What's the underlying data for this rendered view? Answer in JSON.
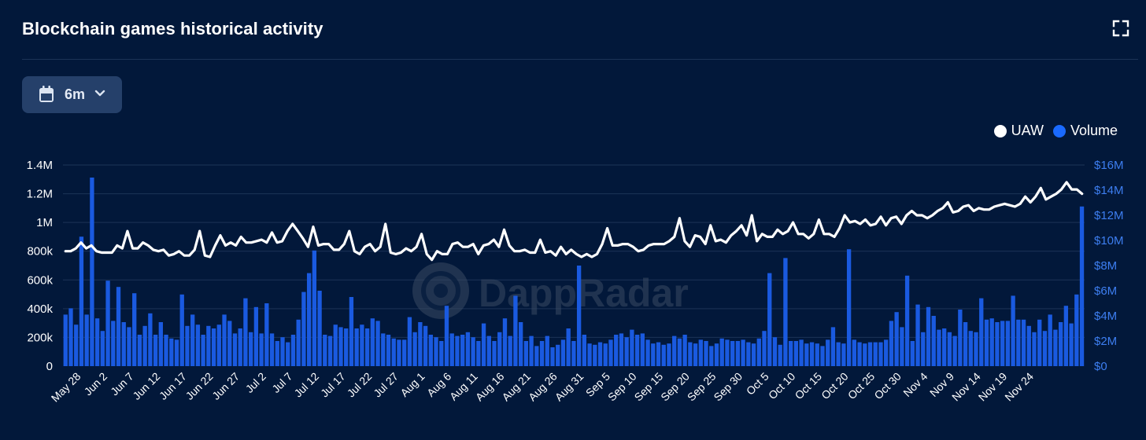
{
  "title": "Blockchain games historical activity",
  "period": {
    "label": "6m",
    "icon": "calendar-icon"
  },
  "watermark": "DappRadar",
  "legend": [
    {
      "name": "UAW",
      "color": "#ffffff"
    },
    {
      "name": "Volume",
      "color": "#1a6aff"
    }
  ],
  "colors": {
    "background": "#02183a",
    "bar": "#1a5ae0",
    "line": "#ffffff",
    "right_axis": "#3d7ef0",
    "grid": "#1c3357"
  },
  "chart_data": {
    "type": "bar",
    "x_ticks": [
      "May 28",
      "Jun 2",
      "Jun 7",
      "Jun 12",
      "Jun 17",
      "Jun 22",
      "Jun 27",
      "Jul 2",
      "Jul 7",
      "Jul 12",
      "Jul 17",
      "Jul 22",
      "Jul 27",
      "Aug 1",
      "Aug 6",
      "Aug 11",
      "Aug 16",
      "Aug 21",
      "Aug 26",
      "Aug 31",
      "Sep 5",
      "Sep 10",
      "Sep 15",
      "Sep 20",
      "Sep 25",
      "Sep 30",
      "Oct 5",
      "Oct 10",
      "Oct 15",
      "Oct 20",
      "Oct 25",
      "Oct 30",
      "Nov 4",
      "Nov 9",
      "Nov 14",
      "Nov 19",
      "Nov 24"
    ],
    "y_left": {
      "ticks": [
        "0",
        "200k",
        "400k",
        "600k",
        "800k",
        "1M",
        "1.2M",
        "1.4M"
      ],
      "range": [
        0,
        1400000
      ]
    },
    "y_right": {
      "ticks": [
        "$0",
        "$2M",
        "$4M",
        "$6M",
        "$8M",
        "$10M",
        "$12M",
        "$14M",
        "$16M"
      ],
      "range": [
        0,
        16000000
      ]
    },
    "grid": true,
    "legend_position": "top-right",
    "series": [
      {
        "name": "Volume",
        "type": "bar",
        "axis": "right",
        "unit": "USD",
        "values": [
          4.1,
          4.6,
          3.3,
          10.3,
          4.1,
          15.0,
          3.8,
          2.8,
          6.8,
          3.6,
          6.3,
          3.5,
          3.1,
          5.8,
          2.5,
          3.2,
          4.2,
          2.5,
          3.5,
          2.5,
          2.2,
          2.1,
          5.7,
          3.2,
          4.1,
          3.3,
          2.5,
          3.2,
          3.0,
          3.3,
          4.1,
          3.6,
          2.6,
          3.0,
          5.4,
          2.7,
          4.7,
          2.6,
          5.0,
          2.6,
          2.0,
          2.3,
          1.9,
          2.5,
          3.7,
          5.9,
          7.4,
          9.2,
          6.0,
          2.5,
          2.4,
          3.3,
          3.1,
          3.0,
          5.5,
          3.0,
          3.3,
          3.0,
          3.8,
          3.6,
          2.6,
          2.5,
          2.2,
          2.1,
          2.1,
          3.9,
          2.7,
          3.5,
          3.2,
          2.5,
          2.3,
          2.0,
          4.8,
          2.6,
          2.4,
          2.5,
          2.7,
          2.3,
          2.0,
          3.4,
          2.4,
          2.0,
          2.7,
          3.8,
          2.4,
          5.6,
          3.5,
          2.0,
          2.4,
          1.6,
          2.0,
          2.4,
          1.5,
          1.7,
          2.1,
          3.0,
          2.0,
          8.0,
          2.5,
          1.8,
          1.7,
          1.9,
          1.8,
          2.1,
          2.5,
          2.6,
          2.3,
          2.9,
          2.5,
          2.6,
          2.1,
          1.8,
          1.9,
          1.7,
          1.8,
          2.4,
          2.2,
          2.5,
          1.9,
          1.8,
          2.1,
          2.0,
          1.6,
          1.8,
          2.2,
          2.1,
          2.0,
          2.0,
          2.1,
          1.9,
          1.8,
          2.2,
          2.8,
          7.4,
          2.3,
          1.7,
          8.6,
          2.0,
          2.0,
          2.1,
          1.8,
          1.9,
          1.8,
          1.6,
          2.1,
          3.1,
          1.9,
          1.8,
          9.3,
          2.1,
          1.9,
          1.8,
          1.9,
          1.9,
          1.9,
          2.1,
          3.6,
          4.3,
          3.1,
          7.2,
          2.0,
          4.9,
          2.7,
          4.7,
          4.0,
          2.9,
          3.0,
          2.7,
          2.4,
          4.5,
          3.5,
          2.8,
          2.7,
          5.4,
          3.7,
          3.8,
          3.5,
          3.6,
          3.6,
          5.6,
          3.7,
          3.7,
          3.2,
          2.7,
          3.7,
          2.8,
          4.1,
          2.9,
          3.5,
          4.8,
          3.4,
          5.7,
          12.7
        ]
      },
      {
        "name": "UAW",
        "type": "line",
        "axis": "left",
        "values": [
          800000,
          800000,
          820000,
          860000,
          820000,
          840000,
          800000,
          790000,
          790000,
          790000,
          840000,
          820000,
          940000,
          820000,
          820000,
          860000,
          840000,
          810000,
          800000,
          810000,
          770000,
          780000,
          800000,
          770000,
          770000,
          810000,
          940000,
          770000,
          760000,
          840000,
          910000,
          840000,
          860000,
          840000,
          900000,
          860000,
          860000,
          870000,
          880000,
          860000,
          930000,
          860000,
          870000,
          940000,
          990000,
          940000,
          890000,
          830000,
          970000,
          840000,
          850000,
          850000,
          810000,
          810000,
          850000,
          940000,
          800000,
          780000,
          830000,
          850000,
          800000,
          830000,
          990000,
          790000,
          780000,
          790000,
          820000,
          800000,
          830000,
          920000,
          780000,
          740000,
          800000,
          780000,
          780000,
          850000,
          860000,
          830000,
          830000,
          850000,
          780000,
          840000,
          850000,
          880000,
          830000,
          950000,
          840000,
          800000,
          800000,
          810000,
          790000,
          790000,
          880000,
          790000,
          800000,
          770000,
          830000,
          780000,
          810000,
          780000,
          760000,
          780000,
          760000,
          780000,
          850000,
          960000,
          840000,
          840000,
          850000,
          850000,
          830000,
          800000,
          810000,
          840000,
          850000,
          850000,
          850000,
          870000,
          900000,
          1030000,
          870000,
          830000,
          910000,
          900000,
          850000,
          980000,
          870000,
          880000,
          860000,
          910000,
          940000,
          980000,
          910000,
          1050000,
          870000,
          920000,
          900000,
          900000,
          950000,
          920000,
          940000,
          1000000,
          920000,
          920000,
          890000,
          920000,
          1020000,
          920000,
          920000,
          900000,
          960000,
          1050000,
          1000000,
          1010000,
          990000,
          1020000,
          980000,
          990000,
          1040000,
          980000,
          1030000,
          1040000,
          990000,
          1050000,
          1080000,
          1050000,
          1050000,
          1030000,
          1050000,
          1080000,
          1100000,
          1140000,
          1070000,
          1080000,
          1110000,
          1120000,
          1080000,
          1100000,
          1090000,
          1090000,
          1110000,
          1120000,
          1130000,
          1120000,
          1110000,
          1130000,
          1180000,
          1140000,
          1180000,
          1240000,
          1160000,
          1180000,
          1200000,
          1230000,
          1280000,
          1230000,
          1230000,
          1200000
        ]
      }
    ]
  }
}
